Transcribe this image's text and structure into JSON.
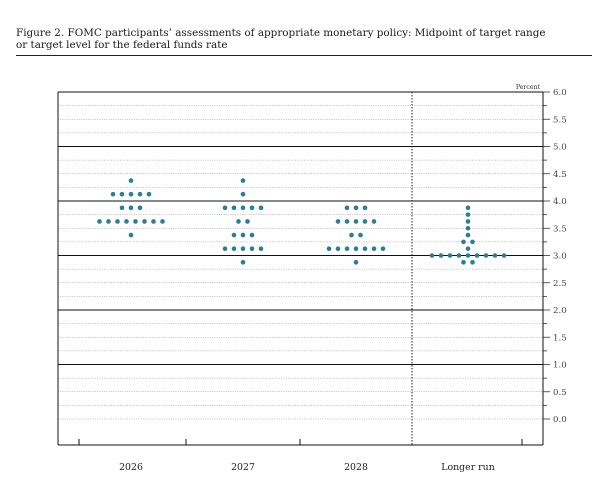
{
  "figure": {
    "title_line1": "Figure 2. FOMC participants’ assessments of appropriate monetary policy: Midpoint of target range",
    "title_line2": "or target level for the federal funds rate"
  },
  "chart_data": {
    "type": "scatter",
    "title": "Figure 2. FOMC participants’ assessments of appropriate monetary policy: Midpoint of target range or target level for the federal funds rate",
    "unit_label": "Percent",
    "categories": [
      "2026",
      "2027",
      "2028",
      "Longer run"
    ],
    "ylim": [
      -0.25,
      6.0
    ],
    "yticks": [
      6.0,
      5.5,
      5.0,
      4.5,
      4.0,
      3.5,
      3.0,
      2.5,
      2.0,
      1.5,
      1.0,
      0.5,
      0.0
    ],
    "ytick_labels": [
      "6.0",
      "5.5",
      "5.0",
      "4.5",
      "4.0",
      "3.5",
      "3.0",
      "2.5",
      "2.0",
      "1.5",
      "1.0",
      "0.5",
      "0.0"
    ],
    "major_gridlines": [
      6.0,
      5.0,
      4.0,
      3.0,
      2.0,
      1.0
    ],
    "dot_color": "#2a7f96",
    "grid": true,
    "series": [
      {
        "category": "2026",
        "points": [
          {
            "y": 4.375,
            "count": 1
          },
          {
            "y": 4.125,
            "count": 5
          },
          {
            "y": 3.875,
            "count": 3
          },
          {
            "y": 3.625,
            "count": 8
          },
          {
            "y": 3.375,
            "count": 1
          }
        ]
      },
      {
        "category": "2027",
        "points": [
          {
            "y": 4.375,
            "count": 1
          },
          {
            "y": 4.125,
            "count": 1
          },
          {
            "y": 3.875,
            "count": 5
          },
          {
            "y": 3.625,
            "count": 2
          },
          {
            "y": 3.375,
            "count": 3
          },
          {
            "y": 3.125,
            "count": 5
          },
          {
            "y": 2.875,
            "count": 1
          }
        ]
      },
      {
        "category": "2028",
        "points": [
          {
            "y": 3.875,
            "count": 3
          },
          {
            "y": 3.625,
            "count": 5
          },
          {
            "y": 3.375,
            "count": 2
          },
          {
            "y": 3.125,
            "count": 7
          },
          {
            "y": 2.875,
            "count": 1
          }
        ]
      },
      {
        "category": "Longer run",
        "points": [
          {
            "y": 3.875,
            "count": 1
          },
          {
            "y": 3.75,
            "count": 1
          },
          {
            "y": 3.625,
            "count": 1
          },
          {
            "y": 3.5,
            "count": 1
          },
          {
            "y": 3.375,
            "count": 1
          },
          {
            "y": 3.25,
            "count": 2
          },
          {
            "y": 3.125,
            "count": 1
          },
          {
            "y": 3.0,
            "count": 9
          },
          {
            "y": 2.875,
            "count": 2
          }
        ]
      }
    ]
  }
}
